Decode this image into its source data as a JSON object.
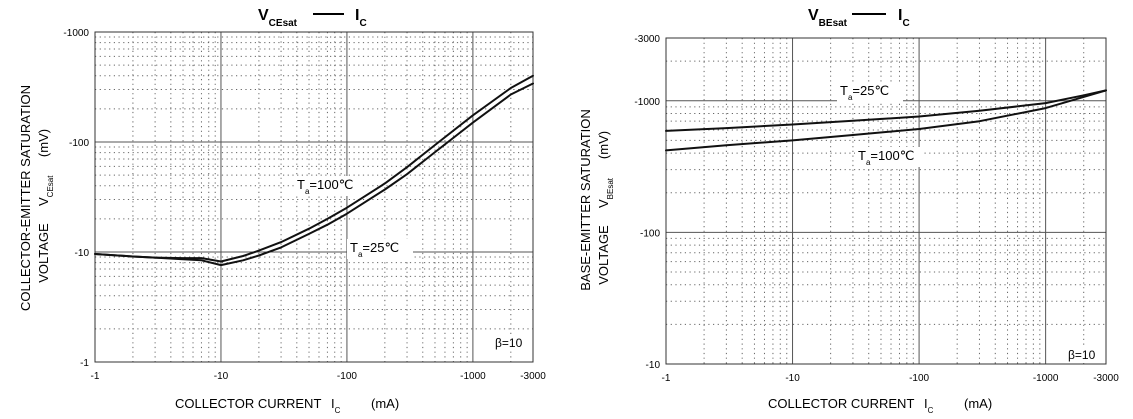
{
  "chart_data": [
    {
      "type": "line",
      "title_main": "V",
      "title_sub": "CEsat",
      "title_rhs_main": "I",
      "title_rhs_sub": "C",
      "xlabel": "COLLECTOR CURRENT",
      "xlabel_sym": "I",
      "xlabel_sub": "C",
      "xlabel_unit": "(mA)",
      "ylabel_line1": "COLLECTOR-EMITTER SATURATION",
      "ylabel_line2": "VOLTAGE",
      "ylabel_sym": "V",
      "ylabel_sub": "CEsat",
      "ylabel_unit": "(mV)",
      "x_scale": "log",
      "y_scale": "log",
      "xlim": [
        1,
        3000
      ],
      "ylim": [
        1,
        1000
      ],
      "x_ticks": [
        "-1",
        "-10",
        "-100",
        "-1000",
        "-3000"
      ],
      "y_ticks": [
        "-1",
        "-10",
        "-100",
        "-1000"
      ],
      "grid": true,
      "annotation_beta": "β=10",
      "series": [
        {
          "label_main": "T",
          "label_sub": "a",
          "label_rest": "=100℃",
          "x": [
            1,
            2,
            3,
            5,
            7,
            10,
            15,
            20,
            30,
            50,
            70,
            100,
            200,
            300,
            500,
            1000,
            2000,
            3000
          ],
          "y": [
            9.6,
            9.1,
            8.9,
            8.8,
            8.8,
            8.2,
            9.2,
            10.3,
            12.3,
            16.3,
            20,
            25.3,
            42,
            59,
            94,
            175,
            310,
            400
          ]
        },
        {
          "label_main": "T",
          "label_sub": "a",
          "label_rest": "=25℃",
          "x": [
            1,
            2,
            3,
            5,
            7,
            10,
            15,
            20,
            30,
            50,
            70,
            100,
            200,
            300,
            500,
            1000,
            2000,
            3000
          ],
          "y": [
            9.6,
            9.1,
            8.9,
            8.6,
            8.4,
            7.6,
            8.4,
            9.3,
            11,
            14.6,
            17.7,
            22.3,
            37,
            51,
            81,
            150,
            270,
            340
          ]
        }
      ]
    },
    {
      "type": "line",
      "title_main": "V",
      "title_sub": "BEsat",
      "title_rhs_main": "I",
      "title_rhs_sub": "C",
      "xlabel": "COLLECTOR CURRENT",
      "xlabel_sym": "I",
      "xlabel_sub": "C",
      "xlabel_unit": "(mA)",
      "ylabel_line1": "BASE-EMITTER SATURATION",
      "ylabel_line2": "VOLTAGE",
      "ylabel_sym": "V",
      "ylabel_sub": "BEsat",
      "ylabel_unit": "(mV)",
      "x_scale": "log",
      "y_scale": "log",
      "xlim": [
        1,
        3000
      ],
      "ylim": [
        10,
        3000
      ],
      "x_ticks": [
        "-1",
        "-10",
        "-100",
        "-1000",
        "-3000"
      ],
      "y_ticks": [
        "-10",
        "-100",
        "-1000",
        "-3000"
      ],
      "grid": true,
      "annotation_beta": "β=10",
      "series": [
        {
          "label_main": "T",
          "label_sub": "a",
          "label_rest": "=25℃",
          "x": [
            1,
            3,
            10,
            30,
            100,
            300,
            1000,
            2000,
            3000
          ],
          "y": [
            590,
            620,
            660,
            705,
            760,
            840,
            960,
            1100,
            1200
          ]
        },
        {
          "label_main": "T",
          "label_sub": "a",
          "label_rest": "=100℃",
          "x": [
            1,
            3,
            10,
            30,
            100,
            300,
            1000,
            2000,
            3000
          ],
          "y": [
            420,
            460,
            500,
            550,
            610,
            700,
            880,
            1070,
            1200
          ]
        }
      ]
    }
  ]
}
